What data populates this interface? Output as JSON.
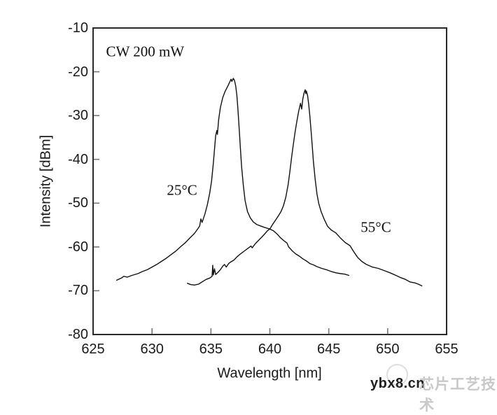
{
  "watermark": {
    "site": "ybx8.cn",
    "cn_text": "芯片工艺技术"
  },
  "colors": {
    "curve": "#111111",
    "axis_border": "#2a2a2a",
    "tick": "#777777",
    "text": "#1a1a1a",
    "watermark_cn": "#c8c8c8"
  },
  "chart_data": {
    "type": "line",
    "title": "",
    "xlabel": "Wavelength [nm]",
    "ylabel": "Intensity [dBm]",
    "xlim": [
      625,
      655
    ],
    "ylim": [
      -80,
      -10
    ],
    "x_ticks": [
      625,
      630,
      635,
      640,
      645,
      650,
      655
    ],
    "y_ticks": [
      -10,
      -20,
      -30,
      -40,
      -50,
      -60,
      -70,
      -80
    ],
    "grid": false,
    "legend": "none",
    "annotations": [
      {
        "text": "CW 200 mW",
        "x": 626.1,
        "y": -15.4,
        "anchor": "left"
      },
      {
        "text": "25°C",
        "x": 632.55,
        "y": -47.1,
        "anchor": "center"
      },
      {
        "text": "55°C",
        "x": 649.0,
        "y": -55.5,
        "anchor": "center"
      }
    ],
    "series": [
      {
        "name": "25C",
        "label": "25°C",
        "peak_nm": 636.9,
        "peak_dBm": -21.5,
        "points": [
          [
            627.0,
            -67.6
          ],
          [
            627.4,
            -67.1
          ],
          [
            627.6,
            -66.7
          ],
          [
            627.9,
            -66.9
          ],
          [
            628.3,
            -66.5
          ],
          [
            628.8,
            -66.1
          ],
          [
            629.2,
            -65.6
          ],
          [
            629.6,
            -65.2
          ],
          [
            630.0,
            -64.6
          ],
          [
            630.4,
            -64.0
          ],
          [
            630.8,
            -63.3
          ],
          [
            631.2,
            -62.6
          ],
          [
            631.6,
            -61.8
          ],
          [
            632.0,
            -61.0
          ],
          [
            632.4,
            -60.0
          ],
          [
            632.8,
            -59.1
          ],
          [
            633.2,
            -58.0
          ],
          [
            633.6,
            -56.9
          ],
          [
            633.9,
            -55.8
          ],
          [
            634.05,
            -55.2
          ],
          [
            634.15,
            -53.6
          ],
          [
            634.25,
            -54.4
          ],
          [
            634.5,
            -52.4
          ],
          [
            634.7,
            -50.3
          ],
          [
            634.9,
            -47.7
          ],
          [
            635.05,
            -45.0
          ],
          [
            635.2,
            -41.0
          ],
          [
            635.3,
            -37.8
          ],
          [
            635.4,
            -34.6
          ],
          [
            635.5,
            -33.4
          ],
          [
            635.55,
            -34.3
          ],
          [
            635.65,
            -31.0
          ],
          [
            635.8,
            -28.2
          ],
          [
            636.0,
            -25.9
          ],
          [
            636.2,
            -24.5
          ],
          [
            636.45,
            -23.2
          ],
          [
            636.6,
            -22.3
          ],
          [
            636.7,
            -21.7
          ],
          [
            636.78,
            -22.2
          ],
          [
            636.9,
            -21.5
          ],
          [
            637.0,
            -22.0
          ],
          [
            637.1,
            -23.2
          ],
          [
            637.2,
            -25.4
          ],
          [
            637.3,
            -28.8
          ],
          [
            637.4,
            -33.0
          ],
          [
            637.5,
            -37.4
          ],
          [
            637.6,
            -41.6
          ],
          [
            637.75,
            -45.9
          ],
          [
            637.9,
            -49.4
          ],
          [
            638.1,
            -51.9
          ],
          [
            638.35,
            -53.4
          ],
          [
            638.6,
            -54.3
          ],
          [
            638.9,
            -54.9
          ],
          [
            639.2,
            -55.2
          ],
          [
            639.5,
            -55.5
          ],
          [
            639.75,
            -55.7
          ],
          [
            640.0,
            -55.9
          ],
          [
            640.3,
            -56.3
          ],
          [
            640.6,
            -57.0
          ],
          [
            640.9,
            -57.9
          ],
          [
            641.2,
            -58.6
          ],
          [
            641.45,
            -59.1
          ],
          [
            641.6,
            -60.0
          ],
          [
            641.9,
            -60.9
          ],
          [
            642.2,
            -61.6
          ],
          [
            642.5,
            -62.1
          ],
          [
            642.8,
            -62.7
          ],
          [
            643.1,
            -63.2
          ],
          [
            643.4,
            -63.8
          ],
          [
            643.7,
            -64.1
          ],
          [
            644.0,
            -64.5
          ],
          [
            644.4,
            -64.9
          ],
          [
            644.8,
            -65.2
          ],
          [
            645.2,
            -65.6
          ],
          [
            645.6,
            -65.9
          ],
          [
            646.0,
            -66.1
          ],
          [
            646.35,
            -66.2
          ],
          [
            646.7,
            -66.5
          ]
        ]
      },
      {
        "name": "55C",
        "label": "55°C",
        "peak_nm": 643.0,
        "peak_dBm": -24.1,
        "points": [
          [
            633.0,
            -68.3
          ],
          [
            633.3,
            -68.6
          ],
          [
            633.6,
            -68.7
          ],
          [
            633.95,
            -68.5
          ],
          [
            634.3,
            -67.9
          ],
          [
            634.6,
            -67.4
          ],
          [
            634.9,
            -67.1
          ],
          [
            635.1,
            -66.7
          ],
          [
            635.15,
            -64.2
          ],
          [
            635.2,
            -66.4
          ],
          [
            635.3,
            -65.0
          ],
          [
            635.4,
            -66.3
          ],
          [
            635.6,
            -65.8
          ],
          [
            635.8,
            -65.2
          ],
          [
            636.0,
            -64.4
          ],
          [
            636.15,
            -64.0
          ],
          [
            636.3,
            -64.6
          ],
          [
            636.5,
            -63.8
          ],
          [
            636.7,
            -63.4
          ],
          [
            636.95,
            -63.0
          ],
          [
            637.2,
            -62.3
          ],
          [
            637.5,
            -61.6
          ],
          [
            637.85,
            -60.9
          ],
          [
            638.15,
            -60.3
          ],
          [
            638.4,
            -59.8
          ],
          [
            638.5,
            -60.2
          ],
          [
            638.75,
            -59.3
          ],
          [
            639.0,
            -58.6
          ],
          [
            639.3,
            -57.8
          ],
          [
            639.6,
            -56.9
          ],
          [
            639.8,
            -56.3
          ],
          [
            640.0,
            -55.9
          ],
          [
            640.25,
            -54.8
          ],
          [
            640.5,
            -53.8
          ],
          [
            640.75,
            -52.8
          ],
          [
            640.95,
            -51.9
          ],
          [
            641.15,
            -50.6
          ],
          [
            641.35,
            -48.7
          ],
          [
            641.55,
            -45.8
          ],
          [
            641.7,
            -42.8
          ],
          [
            641.85,
            -39.5
          ],
          [
            642.0,
            -36.4
          ],
          [
            642.15,
            -33.6
          ],
          [
            642.3,
            -31.2
          ],
          [
            642.45,
            -29.0
          ],
          [
            642.6,
            -27.2
          ],
          [
            642.7,
            -28.5
          ],
          [
            642.8,
            -26.2
          ],
          [
            642.9,
            -24.9
          ],
          [
            643.0,
            -24.1
          ],
          [
            643.05,
            -25.0
          ],
          [
            643.1,
            -24.4
          ],
          [
            643.2,
            -25.4
          ],
          [
            643.3,
            -27.4
          ],
          [
            643.4,
            -30.2
          ],
          [
            643.5,
            -33.5
          ],
          [
            643.6,
            -37.0
          ],
          [
            643.7,
            -40.6
          ],
          [
            643.85,
            -44.6
          ],
          [
            644.0,
            -47.9
          ],
          [
            644.15,
            -50.1
          ],
          [
            644.35,
            -51.9
          ],
          [
            644.6,
            -53.6
          ],
          [
            644.9,
            -55.3
          ],
          [
            645.2,
            -56.1
          ],
          [
            645.6,
            -56.8
          ],
          [
            646.0,
            -58.0
          ],
          [
            646.4,
            -59.0
          ],
          [
            646.8,
            -59.7
          ],
          [
            647.1,
            -61.0
          ],
          [
            647.45,
            -62.4
          ],
          [
            647.8,
            -63.3
          ],
          [
            648.2,
            -64.0
          ],
          [
            648.7,
            -64.6
          ],
          [
            649.2,
            -64.9
          ],
          [
            649.7,
            -65.4
          ],
          [
            650.2,
            -65.9
          ],
          [
            650.7,
            -66.5
          ],
          [
            651.1,
            -67.0
          ],
          [
            651.5,
            -67.4
          ],
          [
            651.9,
            -68.0
          ],
          [
            652.3,
            -68.2
          ],
          [
            652.6,
            -68.5
          ],
          [
            652.9,
            -68.9
          ]
        ]
      }
    ]
  }
}
